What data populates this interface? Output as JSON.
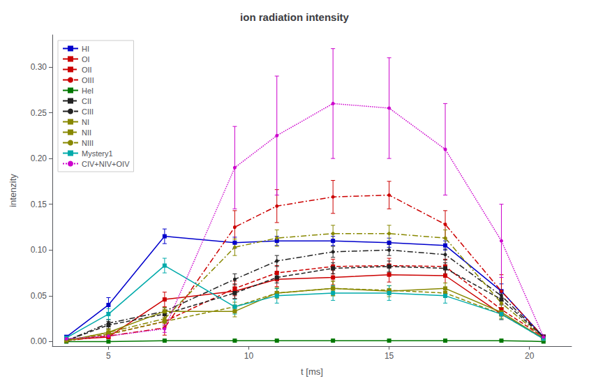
{
  "chart_data": {
    "type": "line",
    "title": "ion radiation intensity",
    "xlabel": "t [ms]",
    "ylabel": "intenzity",
    "xlim": [
      3.0,
      21.5
    ],
    "ylim": [
      -0.005,
      0.335
    ],
    "xticks": [
      5,
      10,
      15,
      20
    ],
    "yticks": [
      {
        "value": 0.0,
        "label": "0.00"
      },
      {
        "value": 0.05,
        "label": "0.05"
      },
      {
        "value": 0.1,
        "label": "0.10"
      },
      {
        "value": 0.15,
        "label": "0.15"
      },
      {
        "value": 0.2,
        "label": "0.20"
      },
      {
        "value": 0.25,
        "label": "0.25"
      },
      {
        "value": 0.3,
        "label": "0.30"
      }
    ],
    "grid": false,
    "legend": "upper left",
    "x": [
      3.5,
      5,
      7,
      9.5,
      11,
      13,
      15,
      17,
      19,
      20.5
    ],
    "series": [
      {
        "name": "HI",
        "color": "#0000cc",
        "line_style": "solid",
        "marker": "square",
        "values": [
          0.005,
          0.04,
          0.115,
          0.108,
          0.11,
          0.11,
          0.108,
          0.105,
          0.055,
          0.005
        ],
        "yerr": [
          0.002,
          0.008,
          0.008,
          0.006,
          0.005,
          0.005,
          0.005,
          0.005,
          0.008,
          0.002
        ]
      },
      {
        "name": "OI",
        "color": "#cc0000",
        "line_style": "solid",
        "marker": "square",
        "values": [
          0.002,
          0.005,
          0.046,
          0.055,
          0.068,
          0.07,
          0.073,
          0.072,
          0.03,
          0.004
        ],
        "yerr": [
          0.001,
          0.002,
          0.008,
          0.008,
          0.008,
          0.008,
          0.008,
          0.008,
          0.006,
          0.002
        ]
      },
      {
        "name": "OII",
        "color": "#cc0000",
        "line_style": "dashed",
        "marker": "square",
        "values": [
          0.001,
          0.008,
          0.022,
          0.058,
          0.075,
          0.082,
          0.083,
          0.082,
          0.035,
          0.005
        ],
        "yerr": [
          0.001,
          0.003,
          0.006,
          0.008,
          0.008,
          0.008,
          0.008,
          0.008,
          0.006,
          0.002
        ]
      },
      {
        "name": "OIII",
        "color": "#cc0000",
        "line_style": "dashdot",
        "marker": "point",
        "values": [
          0.001,
          0.006,
          0.015,
          0.125,
          0.148,
          0.158,
          0.16,
          0.128,
          0.055,
          0.005
        ],
        "yerr": [
          0.001,
          0.002,
          0.008,
          0.018,
          0.018,
          0.018,
          0.015,
          0.015,
          0.018,
          0.002
        ]
      },
      {
        "name": "HeI",
        "color": "#007700",
        "line_style": "solid",
        "marker": "square",
        "values": [
          0.0,
          0.0,
          0.001,
          0.001,
          0.001,
          0.001,
          0.001,
          0.001,
          0.001,
          0.0
        ],
        "yerr": [
          0.0,
          0.0,
          0.0,
          0.0,
          0.0,
          0.0,
          0.0,
          0.0,
          0.0,
          0.0
        ]
      },
      {
        "name": "CII",
        "color": "#222222",
        "line_style": "dashed",
        "marker": "square",
        "values": [
          0.001,
          0.018,
          0.03,
          0.053,
          0.07,
          0.08,
          0.082,
          0.08,
          0.046,
          0.005
        ],
        "yerr": [
          0.001,
          0.004,
          0.004,
          0.006,
          0.006,
          0.006,
          0.006,
          0.006,
          0.006,
          0.002
        ]
      },
      {
        "name": "CIII",
        "color": "#222222",
        "line_style": "dashdot",
        "marker": "point",
        "values": [
          0.001,
          0.02,
          0.033,
          0.068,
          0.088,
          0.098,
          0.1,
          0.095,
          0.05,
          0.005
        ],
        "yerr": [
          0.001,
          0.004,
          0.004,
          0.006,
          0.006,
          0.006,
          0.006,
          0.006,
          0.006,
          0.002
        ]
      },
      {
        "name": "NI",
        "color": "#888800",
        "line_style": "solid",
        "marker": "square",
        "values": [
          0.001,
          0.01,
          0.033,
          0.033,
          0.053,
          0.058,
          0.055,
          0.058,
          0.032,
          0.003
        ],
        "yerr": [
          0.001,
          0.004,
          0.004,
          0.006,
          0.006,
          0.008,
          0.006,
          0.006,
          0.005,
          0.001
        ]
      },
      {
        "name": "NII",
        "color": "#888800",
        "line_style": "dashed",
        "marker": "square",
        "values": [
          0.001,
          0.008,
          0.022,
          0.038,
          0.053,
          0.058,
          0.056,
          0.053,
          0.03,
          0.003
        ],
        "yerr": [
          0.001,
          0.003,
          0.004,
          0.005,
          0.005,
          0.008,
          0.005,
          0.005,
          0.005,
          0.001
        ]
      },
      {
        "name": "NIII",
        "color": "#888800",
        "line_style": "dashdot",
        "marker": "point",
        "values": [
          0.001,
          0.01,
          0.025,
          0.103,
          0.113,
          0.118,
          0.118,
          0.113,
          0.042,
          0.004
        ],
        "yerr": [
          0.001,
          0.003,
          0.004,
          0.009,
          0.009,
          0.009,
          0.009,
          0.009,
          0.005,
          0.001
        ]
      },
      {
        "name": "Mystery1",
        "color": "#00aaaa",
        "line_style": "solid",
        "marker": "square",
        "values": [
          0.004,
          0.03,
          0.083,
          0.038,
          0.05,
          0.053,
          0.053,
          0.05,
          0.03,
          0.003
        ],
        "yerr": [
          0.001,
          0.006,
          0.008,
          0.008,
          0.008,
          0.008,
          0.008,
          0.008,
          0.006,
          0.001
        ]
      },
      {
        "name": "CIV+NIV+OIV",
        "color": "#cc00cc",
        "line_style": "dotted",
        "marker": "point",
        "values": [
          0.003,
          0.006,
          0.014,
          0.19,
          0.225,
          0.26,
          0.255,
          0.21,
          0.11,
          0.005
        ],
        "yerr": [
          0.001,
          0.002,
          0.004,
          0.045,
          0.065,
          0.06,
          0.055,
          0.05,
          0.04,
          0.002
        ]
      }
    ]
  }
}
